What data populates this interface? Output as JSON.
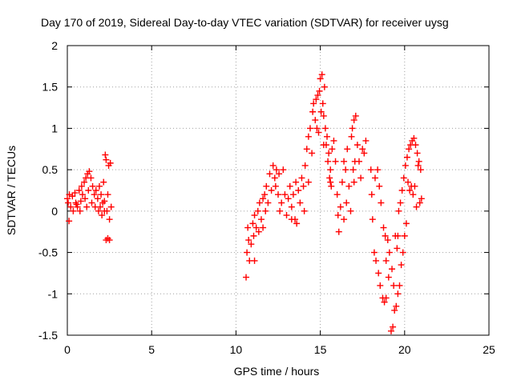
{
  "chart_data": {
    "type": "scatter",
    "title": "Day 170 of 2019, Sidereal Day-to-day VTEC variation (SDTVAR) for receiver uysg",
    "xlabel": "GPS time / hours",
    "ylabel": "SDTVAR / TECUs",
    "xlim": [
      0,
      25
    ],
    "ylim": [
      -1.5,
      2
    ],
    "xticks": [
      "0",
      "5",
      "10",
      "15",
      "20",
      "25"
    ],
    "yticks": [
      "-1.5",
      "-1",
      "-0.5",
      "0",
      "0.5",
      "1",
      "1.5",
      "2"
    ],
    "grid": true,
    "marker": "plus",
    "color": "#ff0000",
    "series": [
      {
        "name": "SDTVAR",
        "points": [
          [
            0.0,
            0.15
          ],
          [
            0.05,
            0.1
          ],
          [
            0.1,
            -0.12
          ],
          [
            0.12,
            0.2
          ],
          [
            0.2,
            0.05
          ],
          [
            0.3,
            0.18
          ],
          [
            0.35,
            0.0
          ],
          [
            0.45,
            0.22
          ],
          [
            0.5,
            0.1
          ],
          [
            0.6,
            0.05
          ],
          [
            0.7,
            0.25
          ],
          [
            0.8,
            0.12
          ],
          [
            0.85,
            0.3
          ],
          [
            0.9,
            0.2
          ],
          [
            1.0,
            0.35
          ],
          [
            1.05,
            0.15
          ],
          [
            1.1,
            0.4
          ],
          [
            1.2,
            0.45
          ],
          [
            1.25,
            0.25
          ],
          [
            1.3,
            0.48
          ],
          [
            1.4,
            0.4
          ],
          [
            1.45,
            0.1
          ],
          [
            1.5,
            0.3
          ],
          [
            1.6,
            0.2
          ],
          [
            1.65,
            0.05
          ],
          [
            1.7,
            0.25
          ],
          [
            1.8,
            0.15
          ],
          [
            1.85,
            0.0
          ],
          [
            1.9,
            0.3
          ],
          [
            2.0,
            0.2
          ],
          [
            2.05,
            -0.05
          ],
          [
            2.1,
            0.1
          ],
          [
            2.15,
            0.35
          ],
          [
            2.2,
            0.0
          ],
          [
            2.25,
            0.68
          ],
          [
            2.3,
            0.62
          ],
          [
            2.35,
            0.0
          ],
          [
            2.4,
            0.2
          ],
          [
            2.45,
            0.55
          ],
          [
            2.5,
            -0.1
          ],
          [
            2.55,
            0.58
          ],
          [
            2.6,
            0.05
          ],
          [
            2.3,
            -0.35
          ],
          [
            2.4,
            -0.33
          ],
          [
            2.5,
            -0.35
          ],
          [
            2.2,
            0.12
          ],
          [
            1.95,
            0.05
          ],
          [
            0.55,
            0.08
          ],
          [
            0.75,
            0.0
          ],
          [
            1.15,
            0.05
          ],
          [
            10.6,
            -0.8
          ],
          [
            10.65,
            -0.5
          ],
          [
            10.7,
            -0.2
          ],
          [
            10.75,
            -0.35
          ],
          [
            10.8,
            -0.6
          ],
          [
            10.9,
            -0.4
          ],
          [
            11.0,
            -0.15
          ],
          [
            11.05,
            -0.3
          ],
          [
            11.1,
            -0.05
          ],
          [
            11.2,
            -0.2
          ],
          [
            11.3,
            0.0
          ],
          [
            11.35,
            -0.25
          ],
          [
            11.4,
            0.1
          ],
          [
            11.5,
            -0.1
          ],
          [
            11.6,
            0.15
          ],
          [
            11.7,
            0.2
          ],
          [
            11.75,
            0.0
          ],
          [
            11.8,
            0.3
          ],
          [
            11.9,
            0.1
          ],
          [
            12.0,
            0.45
          ],
          [
            12.1,
            0.25
          ],
          [
            12.2,
            0.55
          ],
          [
            12.3,
            0.4
          ],
          [
            12.35,
            0.3
          ],
          [
            12.4,
            0.5
          ],
          [
            12.5,
            0.2
          ],
          [
            12.55,
            0.45
          ],
          [
            12.6,
            0.0
          ],
          [
            12.7,
            0.1
          ],
          [
            12.8,
            0.5
          ],
          [
            12.9,
            0.2
          ],
          [
            13.0,
            -0.05
          ],
          [
            13.1,
            0.15
          ],
          [
            13.2,
            0.3
          ],
          [
            13.3,
            0.05
          ],
          [
            13.4,
            0.2
          ],
          [
            13.5,
            -0.1
          ],
          [
            13.55,
            0.35
          ],
          [
            13.6,
            -0.15
          ],
          [
            13.7,
            0.25
          ],
          [
            13.8,
            0.1
          ],
          [
            13.9,
            0.4
          ],
          [
            14.0,
            0.3
          ],
          [
            14.05,
            0.0
          ],
          [
            14.1,
            0.55
          ],
          [
            14.2,
            0.75
          ],
          [
            14.3,
            0.9
          ],
          [
            14.4,
            1.0
          ],
          [
            14.5,
            0.7
          ],
          [
            14.55,
            1.2
          ],
          [
            14.6,
            1.3
          ],
          [
            14.7,
            1.1
          ],
          [
            14.75,
            1.35
          ],
          [
            14.8,
            1.0
          ],
          [
            14.85,
            1.4
          ],
          [
            14.9,
            0.95
          ],
          [
            14.95,
            1.45
          ],
          [
            15.0,
            1.6
          ],
          [
            15.05,
            1.2
          ],
          [
            15.1,
            1.65
          ],
          [
            15.15,
            1.3
          ],
          [
            15.2,
            1.15
          ],
          [
            15.25,
            1.5
          ],
          [
            15.3,
            1.0
          ],
          [
            15.35,
            0.8
          ],
          [
            15.4,
            0.9
          ],
          [
            15.45,
            0.6
          ],
          [
            15.5,
            0.7
          ],
          [
            15.55,
            0.4
          ],
          [
            15.6,
            0.5
          ],
          [
            15.65,
            0.3
          ],
          [
            15.7,
            0.75
          ],
          [
            15.8,
            0.85
          ],
          [
            15.9,
            0.6
          ],
          [
            16.0,
            0.2
          ],
          [
            16.05,
            -0.05
          ],
          [
            16.1,
            -0.25
          ],
          [
            16.2,
            0.05
          ],
          [
            16.3,
            0.35
          ],
          [
            16.4,
            0.6
          ],
          [
            16.5,
            0.5
          ],
          [
            16.55,
            0.1
          ],
          [
            16.6,
            0.75
          ],
          [
            16.7,
            0.3
          ],
          [
            16.8,
            0.0
          ],
          [
            16.85,
            0.9
          ],
          [
            16.9,
            1.0
          ],
          [
            16.95,
            0.5
          ],
          [
            17.0,
            1.1
          ],
          [
            17.05,
            0.6
          ],
          [
            17.1,
            1.15
          ],
          [
            17.2,
            0.8
          ],
          [
            17.3,
            0.6
          ],
          [
            17.4,
            0.4
          ],
          [
            17.5,
            0.75
          ],
          [
            17.6,
            0.7
          ],
          [
            17.7,
            0.85
          ],
          [
            18.0,
            0.5
          ],
          [
            18.05,
            0.2
          ],
          [
            18.1,
            -0.1
          ],
          [
            18.2,
            -0.5
          ],
          [
            18.25,
            0.4
          ],
          [
            18.3,
            -0.6
          ],
          [
            18.4,
            0.5
          ],
          [
            18.45,
            -0.75
          ],
          [
            18.5,
            0.3
          ],
          [
            18.55,
            -0.9
          ],
          [
            18.6,
            0.1
          ],
          [
            18.7,
            -1.05
          ],
          [
            18.75,
            -0.2
          ],
          [
            18.8,
            -1.1
          ],
          [
            18.85,
            -0.3
          ],
          [
            18.9,
            -1.05
          ],
          [
            19.0,
            -0.35
          ],
          [
            19.05,
            -0.8
          ],
          [
            19.1,
            -0.5
          ],
          [
            19.2,
            -1.45
          ],
          [
            19.25,
            -0.7
          ],
          [
            19.3,
            -1.4
          ],
          [
            19.35,
            -0.9
          ],
          [
            19.4,
            -1.2
          ],
          [
            19.45,
            -0.3
          ],
          [
            19.5,
            -1.15
          ],
          [
            19.55,
            -0.45
          ],
          [
            19.6,
            -1.0
          ],
          [
            19.65,
            0.0
          ],
          [
            19.7,
            -0.9
          ],
          [
            19.75,
            0.1
          ],
          [
            19.8,
            -0.65
          ],
          [
            19.85,
            0.25
          ],
          [
            19.9,
            -0.5
          ],
          [
            19.95,
            0.4
          ],
          [
            20.0,
            -0.3
          ],
          [
            20.05,
            0.55
          ],
          [
            20.1,
            -0.15
          ],
          [
            20.15,
            0.65
          ],
          [
            20.2,
            0.35
          ],
          [
            20.25,
            0.75
          ],
          [
            20.3,
            0.25
          ],
          [
            20.35,
            0.8
          ],
          [
            20.4,
            0.3
          ],
          [
            20.45,
            0.85
          ],
          [
            20.5,
            0.2
          ],
          [
            20.55,
            0.88
          ],
          [
            20.6,
            0.3
          ],
          [
            20.65,
            0.8
          ],
          [
            20.7,
            0.05
          ],
          [
            20.75,
            0.7
          ],
          [
            20.8,
            0.55
          ],
          [
            20.85,
            0.6
          ],
          [
            20.9,
            0.1
          ],
          [
            20.95,
            0.5
          ],
          [
            21.0,
            0.15
          ],
          [
            15.2,
            0.8
          ],
          [
            15.6,
            0.35
          ],
          [
            17.0,
            0.35
          ],
          [
            16.4,
            -0.1
          ],
          [
            18.9,
            -0.6
          ],
          [
            19.6,
            -0.3
          ],
          [
            11.1,
            -0.6
          ],
          [
            11.6,
            -0.2
          ],
          [
            13.3,
            -0.1
          ],
          [
            14.3,
            0.35
          ]
        ]
      }
    ]
  }
}
